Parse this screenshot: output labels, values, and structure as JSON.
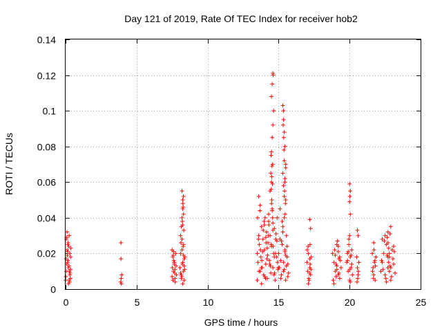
{
  "chart_data": {
    "type": "scatter",
    "title": "Day 121 of 2019, Rate Of TEC Index for receiver hob2",
    "xlabel": "GPS time / hours",
    "ylabel": "ROTI / TECUs",
    "xlim": [
      0,
      25
    ],
    "ylim": [
      0,
      0.14
    ],
    "xticks": [
      0,
      5,
      10,
      15,
      20,
      25
    ],
    "xtick_labels": [
      "0",
      "5",
      "10",
      "15",
      "20",
      "25"
    ],
    "yticks": [
      0,
      0.02,
      0.04,
      0.06,
      0.08,
      0.1,
      0.12,
      0.14
    ],
    "ytick_labels": [
      "0",
      "0.02",
      "0.04",
      "0.06",
      "0.08",
      "0.1",
      "0.12",
      "0.14"
    ],
    "grid": true,
    "marker": "+",
    "color": "#ff0000",
    "series": [
      {
        "name": "ROTI",
        "x": [
          0.0,
          0.05,
          0.1,
          0.15,
          0.2,
          0.25,
          0.3,
          0.35,
          0.05,
          0.15,
          0.25,
          0.3,
          0.1,
          0.2,
          0.35,
          0.02,
          0.12,
          0.22,
          0.32,
          0.08,
          0.18,
          0.28,
          0.04,
          0.14,
          0.24,
          0.34,
          0.06,
          0.16,
          0.26,
          0.36,
          3.9,
          3.9,
          3.95,
          3.92,
          3.88,
          3.93,
          7.5,
          7.55,
          7.6,
          7.65,
          7.7,
          7.75,
          7.8,
          7.52,
          7.62,
          7.72,
          7.58,
          7.68,
          7.78,
          7.5,
          7.6,
          7.7,
          7.66,
          7.56,
          8.05,
          8.1,
          8.15,
          8.2,
          8.25,
          8.3,
          8.35,
          8.4,
          8.1,
          8.2,
          8.3,
          8.15,
          8.25,
          8.35,
          8.12,
          8.22,
          8.32,
          8.18,
          8.28,
          8.38,
          8.2,
          8.25,
          8.3,
          8.2,
          8.25,
          8.3,
          8.22,
          8.28,
          8.24,
          8.26,
          8.1,
          8.3,
          8.15,
          8.35,
          13.5,
          13.55,
          13.6,
          13.65,
          13.7,
          13.75,
          13.8,
          13.85,
          13.9,
          13.95,
          14.0,
          14.05,
          14.1,
          14.15,
          14.2,
          14.25,
          14.3,
          14.35,
          14.4,
          14.45,
          14.5,
          14.55,
          14.6,
          14.65,
          14.7,
          14.75,
          14.8,
          14.85,
          14.9,
          14.95,
          13.52,
          13.62,
          13.72,
          13.82,
          13.92,
          14.02,
          14.12,
          14.22,
          14.32,
          14.42,
          14.52,
          14.62,
          14.72,
          14.82,
          14.92,
          13.58,
          13.68,
          13.78,
          13.88,
          13.98,
          14.08,
          14.18,
          14.28,
          14.38,
          14.48,
          14.58,
          14.68,
          14.78,
          14.88,
          14.98,
          13.6,
          13.7,
          14.0,
          14.1,
          14.2,
          14.3,
          14.4,
          14.5,
          14.6,
          14.7,
          13.5,
          13.8,
          14.45,
          14.5,
          14.55,
          14.6,
          14.65,
          14.5,
          14.55,
          14.6,
          14.62,
          14.58,
          14.52,
          14.48,
          14.55,
          14.6,
          14.5,
          14.57,
          14.53,
          14.47,
          15.0,
          15.05,
          15.1,
          15.15,
          15.2,
          15.25,
          15.3,
          15.35,
          15.4,
          15.45,
          15.5,
          15.55,
          15.6,
          15.65,
          15.7,
          15.1,
          15.2,
          15.3,
          15.4,
          15.5,
          15.6,
          15.15,
          15.25,
          15.35,
          15.45,
          15.55,
          15.65,
          15.3,
          15.35,
          15.4,
          15.45,
          15.5,
          15.3,
          15.35,
          15.4,
          15.45,
          15.5,
          15.32,
          15.38,
          15.42,
          15.48,
          15.36,
          15.44,
          15.4,
          15.46,
          15.34,
          15.5,
          17.0,
          17.05,
          17.1,
          17.15,
          17.2,
          17.25,
          17.3,
          17.02,
          17.12,
          17.22,
          17.08,
          17.18,
          17.28,
          17.1,
          17.2,
          17.2,
          17.25,
          17.22,
          18.8,
          18.9,
          19.0,
          19.1,
          19.2,
          19.3,
          19.4,
          18.85,
          18.95,
          19.05,
          19.15,
          19.25,
          19.35,
          18.9,
          19.0,
          19.1,
          19.2,
          19.3,
          19.1,
          19.2,
          19.25,
          19.05,
          19.8,
          19.85,
          19.9,
          19.95,
          20.0,
          20.05,
          20.1,
          20.15,
          20.2,
          19.85,
          19.95,
          20.05,
          20.15,
          19.9,
          20.0,
          20.1,
          20.0,
          20.05,
          20.0,
          20.05,
          20.02,
          20.0,
          20.5,
          20.55,
          20.6,
          20.65,
          20.52,
          20.62,
          20.58,
          20.6,
          20.55,
          21.6,
          21.65,
          21.7,
          21.75,
          21.8,
          21.85,
          21.62,
          21.72,
          21.82,
          21.68,
          21.78,
          21.7,
          22.2,
          22.3,
          22.4,
          22.5,
          22.6,
          22.7,
          22.8,
          22.9,
          23.0,
          23.1,
          23.2,
          22.25,
          22.35,
          22.45,
          22.55,
          22.65,
          22.75,
          22.85,
          22.95,
          23.05,
          23.15,
          22.3,
          22.5,
          22.7,
          22.9,
          23.1,
          22.6,
          22.7,
          22.8,
          22.9,
          22.65,
          22.75,
          22.85,
          22.7,
          22.8
        ],
        "y": [
          0.005,
          0.01,
          0.022,
          0.025,
          0.012,
          0.03,
          0.008,
          0.018,
          0.028,
          0.015,
          0.005,
          0.02,
          0.032,
          0.003,
          0.011,
          0.007,
          0.019,
          0.024,
          0.009,
          0.014,
          0.026,
          0.004,
          0.017,
          0.021,
          0.013,
          0.006,
          0.029,
          0.016,
          0.01,
          0.023,
          0.026,
          0.017,
          0.008,
          0.006,
          0.004,
          0.003,
          0.022,
          0.018,
          0.01,
          0.014,
          0.006,
          0.02,
          0.008,
          0.012,
          0.016,
          0.004,
          0.019,
          0.009,
          0.013,
          0.007,
          0.021,
          0.011,
          0.015,
          0.005,
          0.012,
          0.02,
          0.008,
          0.028,
          0.015,
          0.025,
          0.005,
          0.018,
          0.03,
          0.022,
          0.01,
          0.035,
          0.003,
          0.017,
          0.026,
          0.014,
          0.033,
          0.007,
          0.024,
          0.011,
          0.04,
          0.045,
          0.052,
          0.055,
          0.05,
          0.042,
          0.038,
          0.046,
          0.036,
          0.048,
          0.009,
          0.019,
          0.006,
          0.013,
          0.02,
          0.015,
          0.03,
          0.025,
          0.01,
          0.018,
          0.035,
          0.012,
          0.028,
          0.008,
          0.022,
          0.04,
          0.014,
          0.032,
          0.006,
          0.026,
          0.038,
          0.016,
          0.03,
          0.009,
          0.024,
          0.045,
          0.012,
          0.02,
          0.034,
          0.005,
          0.028,
          0.018,
          0.04,
          0.011,
          0.04,
          0.01,
          0.022,
          0.016,
          0.033,
          0.007,
          0.026,
          0.019,
          0.036,
          0.013,
          0.05,
          0.024,
          0.009,
          0.031,
          0.015,
          0.028,
          0.044,
          0.012,
          0.021,
          0.038,
          0.006,
          0.017,
          0.03,
          0.014,
          0.025,
          0.04,
          0.008,
          0.02,
          0.027,
          0.012,
          0.052,
          0.047,
          0.036,
          0.029,
          0.023,
          0.042,
          0.055,
          0.06,
          0.033,
          0.018,
          0.005,
          0.003,
          0.065,
          0.077,
          0.085,
          0.092,
          0.1,
          0.108,
          0.115,
          0.121,
          0.12,
          0.07,
          0.063,
          0.056,
          0.044,
          0.037,
          0.048,
          0.059,
          0.069,
          0.075,
          0.02,
          0.012,
          0.028,
          0.016,
          0.008,
          0.025,
          0.035,
          0.01,
          0.04,
          0.022,
          0.005,
          0.03,
          0.018,
          0.014,
          0.009,
          0.045,
          0.027,
          0.032,
          0.011,
          0.019,
          0.024,
          0.006,
          0.038,
          0.015,
          0.021,
          0.013,
          0.007,
          0.103,
          0.095,
          0.088,
          0.08,
          0.07,
          0.065,
          0.058,
          0.052,
          0.062,
          0.068,
          0.092,
          0.078,
          0.055,
          0.048,
          0.085,
          0.06,
          0.072,
          0.042,
          0.1,
          0.05,
          0.015,
          0.01,
          0.02,
          0.005,
          0.012,
          0.008,
          0.018,
          0.022,
          0.006,
          0.014,
          0.024,
          0.009,
          0.011,
          0.003,
          0.017,
          0.039,
          0.034,
          0.025,
          0.02,
          0.015,
          0.01,
          0.025,
          0.008,
          0.018,
          0.012,
          0.005,
          0.022,
          0.014,
          0.027,
          0.009,
          0.016,
          0.003,
          0.019,
          0.011,
          0.024,
          0.006,
          0.013,
          0.021,
          0.017,
          0.007,
          0.015,
          0.02,
          0.01,
          0.025,
          0.005,
          0.018,
          0.012,
          0.022,
          0.008,
          0.016,
          0.028,
          0.004,
          0.014,
          0.021,
          0.011,
          0.019,
          0.059,
          0.055,
          0.049,
          0.042,
          0.052,
          0.03,
          0.018,
          0.012,
          0.008,
          0.015,
          0.004,
          0.01,
          0.006,
          0.03,
          0.033,
          0.02,
          0.012,
          0.008,
          0.015,
          0.005,
          0.018,
          0.01,
          0.022,
          0.013,
          0.006,
          0.016,
          0.026,
          0.01,
          0.015,
          0.02,
          0.008,
          0.025,
          0.012,
          0.018,
          0.005,
          0.022,
          0.014,
          0.009,
          0.016,
          0.011,
          0.027,
          0.006,
          0.019,
          0.023,
          0.013,
          0.007,
          0.017,
          0.021,
          0.028,
          0.03,
          0.032,
          0.035,
          0.024,
          0.004,
          0.026,
          0.02,
          0.012,
          0.029,
          0.015,
          0.031,
          0.018,
          0.01
        ]
      }
    ]
  }
}
